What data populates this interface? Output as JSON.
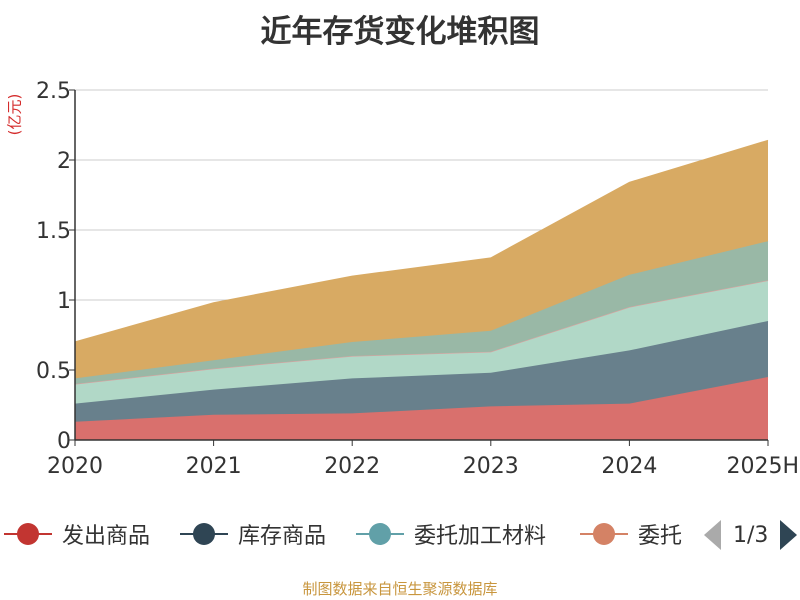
{
  "chart_data": {
    "type": "area",
    "stacked": true,
    "title": "近年存货变化堆积图",
    "unit_label": "(亿元)",
    "categories": [
      "2020",
      "2021",
      "2022",
      "2023",
      "2024",
      "2025H"
    ],
    "ylim": [
      0,
      2.5
    ],
    "yticks": [
      "0",
      "0.5",
      "1",
      "1.5",
      "2",
      "2.5"
    ],
    "grid": true,
    "series": [
      {
        "name": "发出商品",
        "color": "#d9706d",
        "values": [
          0.13,
          0.18,
          0.19,
          0.24,
          0.26,
          0.45
        ]
      },
      {
        "name": "库存商品",
        "color": "#68808c",
        "values": [
          0.13,
          0.18,
          0.25,
          0.24,
          0.38,
          0.4
        ]
      },
      {
        "name": "委托加工材料",
        "color": "#b1d8c7",
        "values": [
          0.14,
          0.15,
          0.16,
          0.15,
          0.31,
          0.29
        ]
      },
      {
        "name": "委托",
        "color": "#daa2a0",
        "values": [
          0.0,
          0.0,
          0.0,
          0.0,
          0.0,
          0.0
        ]
      },
      {
        "name": "",
        "color": "#99b8a6",
        "values": [
          0.04,
          0.06,
          0.1,
          0.15,
          0.23,
          0.28
        ]
      },
      {
        "name": "",
        "color": "#d8aa63",
        "values": [
          0.26,
          0.41,
          0.47,
          0.52,
          0.66,
          0.72
        ]
      }
    ]
  },
  "legend": {
    "items": [
      {
        "label": "发出商品",
        "color": "#c23531"
      },
      {
        "label": "库存商品",
        "color": "#2f4554"
      },
      {
        "label": "委托加工材料",
        "color": "#61a0a8"
      },
      {
        "label": "委托",
        "color": "#d48265"
      }
    ],
    "page_text": "1/3"
  },
  "source": "制图数据来自恒生聚源数据库"
}
